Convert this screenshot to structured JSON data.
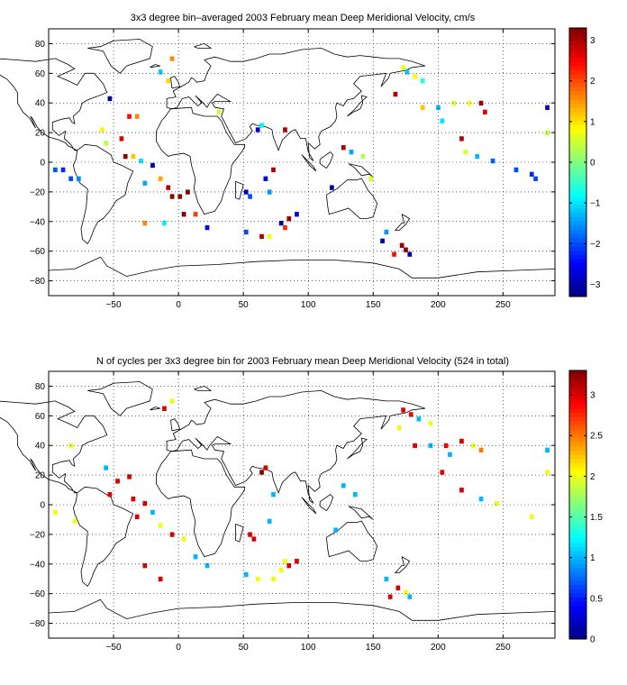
{
  "chart_data": [
    {
      "type": "heatmap",
      "title": "3x3 degree bin–averaged 2003 February mean Deep Meridional Velocity, cm/s",
      "xlabel": "",
      "ylabel": "",
      "xlim": [
        -100,
        290
      ],
      "ylim": [
        -90,
        90
      ],
      "xticks": [
        -50,
        0,
        50,
        100,
        150,
        200,
        250
      ],
      "yticks": [
        80,
        60,
        40,
        20,
        0,
        -20,
        -40,
        -60,
        -80
      ],
      "grid": true,
      "colorbar": {
        "range": [
          -3.3,
          3.3
        ],
        "ticks": [
          3,
          2,
          1,
          0,
          -1,
          -2,
          -3
        ],
        "colormap": "jet"
      },
      "cells": [
        {
          "lon": 173,
          "lat": 64,
          "value": 0.7
        },
        {
          "lon": 176,
          "lat": 61,
          "value": -1.2
        },
        {
          "lon": 182,
          "lat": 58,
          "value": 0.8
        },
        {
          "lon": 188,
          "lat": 55,
          "value": -0.6
        },
        {
          "lon": 167,
          "lat": 46,
          "value": 3.0
        },
        {
          "lon": 188,
          "lat": 37,
          "value": 1.2
        },
        {
          "lon": 200,
          "lat": 37,
          "value": -1.3
        },
        {
          "lon": 212,
          "lat": 40,
          "value": 0.5
        },
        {
          "lon": 224,
          "lat": 40,
          "value": 0.8
        },
        {
          "lon": 233,
          "lat": 40,
          "value": 3.1
        },
        {
          "lon": 236,
          "lat": 34,
          "value": 2.6
        },
        {
          "lon": 203,
          "lat": 28,
          "value": -1.0
        },
        {
          "lon": 218,
          "lat": 16,
          "value": 3.0
        },
        {
          "lon": 221,
          "lat": 7,
          "value": 0.6
        },
        {
          "lon": 230,
          "lat": 4,
          "value": -1.3
        },
        {
          "lon": 242,
          "lat": 1,
          "value": -1.8
        },
        {
          "lon": 260,
          "lat": -5,
          "value": -2.0
        },
        {
          "lon": 272,
          "lat": -8,
          "value": -2.2
        },
        {
          "lon": 275,
          "lat": -11,
          "value": -2.0
        },
        {
          "lon": 284,
          "lat": 20,
          "value": 0.4
        },
        {
          "lon": 284,
          "lat": 37,
          "value": -2.8
        },
        {
          "lon": -95,
          "lat": -5,
          "value": -1.9
        },
        {
          "lon": -89,
          "lat": -5,
          "value": -2.2
        },
        {
          "lon": -83,
          "lat": -11,
          "value": -2.0
        },
        {
          "lon": -77,
          "lat": -11,
          "value": -1.6
        },
        {
          "lon": -59,
          "lat": 22,
          "value": 0.9
        },
        {
          "lon": -56,
          "lat": 13,
          "value": 0.4
        },
        {
          "lon": -53,
          "lat": 43,
          "value": -3.1
        },
        {
          "lon": -44,
          "lat": 16,
          "value": 2.7
        },
        {
          "lon": -38,
          "lat": 31,
          "value": 2.4
        },
        {
          "lon": -32,
          "lat": 31,
          "value": 1.6
        },
        {
          "lon": -41,
          "lat": 4,
          "value": 3.2
        },
        {
          "lon": -35,
          "lat": 4,
          "value": 1.2
        },
        {
          "lon": -29,
          "lat": 1,
          "value": -1.0
        },
        {
          "lon": -20,
          "lat": -2,
          "value": -3.1
        },
        {
          "lon": -14,
          "lat": -11,
          "value": 1.4
        },
        {
          "lon": -26,
          "lat": -14,
          "value": -1.4
        },
        {
          "lon": -8,
          "lat": -17,
          "value": 2.9
        },
        {
          "lon": -5,
          "lat": -23,
          "value": 3.2
        },
        {
          "lon": 1,
          "lat": -23,
          "value": 3.1
        },
        {
          "lon": 7,
          "lat": -20,
          "value": 3.2
        },
        {
          "lon": 4,
          "lat": -35,
          "value": 3.3
        },
        {
          "lon": 13,
          "lat": -35,
          "value": 2.1
        },
        {
          "lon": 22,
          "lat": -44,
          "value": -2.6
        },
        {
          "lon": -26,
          "lat": -41,
          "value": 1.6
        },
        {
          "lon": -11,
          "lat": -41,
          "value": -0.9
        },
        {
          "lon": -14,
          "lat": 61,
          "value": -1.2
        },
        {
          "lon": -8,
          "lat": 55,
          "value": 1.1
        },
        {
          "lon": -5,
          "lat": 70,
          "value": 1.6
        },
        {
          "lon": 31,
          "lat": 34,
          "value": 0.5
        },
        {
          "lon": 64,
          "lat": 25,
          "value": -0.9
        },
        {
          "lon": 61,
          "lat": 22,
          "value": -2.7
        },
        {
          "lon": 82,
          "lat": 22,
          "value": 3.0
        },
        {
          "lon": 73,
          "lat": -5,
          "value": 3.0
        },
        {
          "lon": 67,
          "lat": -11,
          "value": -2.6
        },
        {
          "lon": 70,
          "lat": -20,
          "value": -1.5
        },
        {
          "lon": 52,
          "lat": -20,
          "value": -2.8
        },
        {
          "lon": 55,
          "lat": -23,
          "value": -2.0
        },
        {
          "lon": 52,
          "lat": -47,
          "value": -2.0
        },
        {
          "lon": 64,
          "lat": -50,
          "value": 3.0
        },
        {
          "lon": 70,
          "lat": -50,
          "value": 0.7
        },
        {
          "lon": 79,
          "lat": -41,
          "value": -3.2
        },
        {
          "lon": 85,
          "lat": -38,
          "value": 3.1
        },
        {
          "lon": 91,
          "lat": -35,
          "value": -2.6
        },
        {
          "lon": 82,
          "lat": -44,
          "value": 2.2
        },
        {
          "lon": 127,
          "lat": 10,
          "value": 3.0
        },
        {
          "lon": 133,
          "lat": 7,
          "value": -1.4
        },
        {
          "lon": 142,
          "lat": 4,
          "value": 0.3
        },
        {
          "lon": 118,
          "lat": -17,
          "value": -3.0
        },
        {
          "lon": 148,
          "lat": -11,
          "value": 0.6
        },
        {
          "lon": 157,
          "lat": -53,
          "value": -3.1
        },
        {
          "lon": 160,
          "lat": -47,
          "value": -1.5
        },
        {
          "lon": 172,
          "lat": -56,
          "value": 3.1
        },
        {
          "lon": 175,
          "lat": -59,
          "value": 3.2
        },
        {
          "lon": 178,
          "lat": -62,
          "value": -3.0
        },
        {
          "lon": 166,
          "lat": -62,
          "value": 2.4
        }
      ]
    },
    {
      "type": "heatmap",
      "title": "N of cycles per 3x3 degree bin for 2003 February mean Deep Meridional Velocity (524 in total)",
      "xlabel": "",
      "ylabel": "",
      "xlim": [
        -100,
        290
      ],
      "ylim": [
        -90,
        90
      ],
      "xticks": [
        -50,
        0,
        50,
        100,
        150,
        200,
        250
      ],
      "yticks": [
        80,
        60,
        40,
        20,
        0,
        -20,
        -40,
        -60,
        -80
      ],
      "grid": true,
      "colorbar": {
        "range": [
          0,
          3.3
        ],
        "ticks": [
          "3",
          "2.5",
          "2",
          "1.5",
          "1",
          "0.5",
          "0"
        ],
        "colormap": "jet"
      },
      "cells": [
        {
          "lon": 173,
          "lat": 64,
          "value": 3.0
        },
        {
          "lon": 179,
          "lat": 61,
          "value": 2.9
        },
        {
          "lon": 185,
          "lat": 58,
          "value": 1.0
        },
        {
          "lon": 194,
          "lat": 55,
          "value": 2.0
        },
        {
          "lon": 170,
          "lat": 52,
          "value": 2.0
        },
        {
          "lon": 182,
          "lat": 40,
          "value": 3.0
        },
        {
          "lon": 194,
          "lat": 40,
          "value": 1.0
        },
        {
          "lon": 206,
          "lat": 40,
          "value": 2.9
        },
        {
          "lon": 218,
          "lat": 43,
          "value": 3.0
        },
        {
          "lon": 227,
          "lat": 40,
          "value": 2.0
        },
        {
          "lon": 233,
          "lat": 37,
          "value": 2.5
        },
        {
          "lon": 209,
          "lat": 34,
          "value": 1.0
        },
        {
          "lon": 203,
          "lat": 22,
          "value": 3.0
        },
        {
          "lon": 218,
          "lat": 10,
          "value": 3.0
        },
        {
          "lon": 233,
          "lat": 4,
          "value": 1.0
        },
        {
          "lon": 245,
          "lat": 1,
          "value": 2.0
        },
        {
          "lon": 272,
          "lat": -8,
          "value": 2.0
        },
        {
          "lon": 284,
          "lat": 22,
          "value": 2.0
        },
        {
          "lon": 284,
          "lat": 37,
          "value": 1.0
        },
        {
          "lon": -95,
          "lat": -5,
          "value": 2.0
        },
        {
          "lon": -80,
          "lat": -11,
          "value": 2.0
        },
        {
          "lon": -56,
          "lat": 25,
          "value": 1.0
        },
        {
          "lon": -53,
          "lat": 7,
          "value": 3.0
        },
        {
          "lon": -47,
          "lat": 16,
          "value": 3.0
        },
        {
          "lon": -38,
          "lat": 19,
          "value": 3.0
        },
        {
          "lon": -35,
          "lat": 4,
          "value": 3.0
        },
        {
          "lon": -26,
          "lat": 1,
          "value": 3.0
        },
        {
          "lon": -32,
          "lat": -8,
          "value": 3.0
        },
        {
          "lon": -20,
          "lat": -5,
          "value": 1.0
        },
        {
          "lon": -14,
          "lat": -14,
          "value": 2.0
        },
        {
          "lon": -5,
          "lat": -20,
          "value": 3.0
        },
        {
          "lon": 4,
          "lat": -23,
          "value": 2.0
        },
        {
          "lon": 13,
          "lat": -35,
          "value": 1.0
        },
        {
          "lon": 22,
          "lat": -41,
          "value": 1.0
        },
        {
          "lon": -26,
          "lat": -41,
          "value": 3.0
        },
        {
          "lon": -14,
          "lat": -50,
          "value": 3.0
        },
        {
          "lon": -11,
          "lat": 65,
          "value": 3.0
        },
        {
          "lon": -5,
          "lat": 70,
          "value": 2.0
        },
        {
          "lon": -83,
          "lat": 40,
          "value": 2.0
        },
        {
          "lon": 64,
          "lat": 22,
          "value": 3.3
        },
        {
          "lon": 67,
          "lat": 25,
          "value": 3.0
        },
        {
          "lon": 73,
          "lat": 7,
          "value": 1.0
        },
        {
          "lon": 70,
          "lat": -11,
          "value": 1.0
        },
        {
          "lon": 55,
          "lat": -20,
          "value": 3.0
        },
        {
          "lon": 58,
          "lat": -23,
          "value": 3.0
        },
        {
          "lon": 52,
          "lat": -47,
          "value": 1.0
        },
        {
          "lon": 61,
          "lat": -50,
          "value": 2.0
        },
        {
          "lon": 73,
          "lat": -50,
          "value": 2.0
        },
        {
          "lon": 79,
          "lat": -44,
          "value": 2.0
        },
        {
          "lon": 85,
          "lat": -41,
          "value": 3.0
        },
        {
          "lon": 91,
          "lat": -38,
          "value": 3.0
        },
        {
          "lon": 82,
          "lat": -38,
          "value": 2.0
        },
        {
          "lon": 127,
          "lat": 13,
          "value": 1.0
        },
        {
          "lon": 136,
          "lat": 7,
          "value": 1.0
        },
        {
          "lon": 121,
          "lat": -17,
          "value": 1.0
        },
        {
          "lon": 160,
          "lat": -50,
          "value": 1.0
        },
        {
          "lon": 169,
          "lat": -56,
          "value": 3.0
        },
        {
          "lon": 175,
          "lat": -59,
          "value": 2.0
        },
        {
          "lon": 178,
          "lat": -62,
          "value": 1.0
        },
        {
          "lon": 163,
          "lat": -62,
          "value": 3.0
        }
      ]
    }
  ]
}
